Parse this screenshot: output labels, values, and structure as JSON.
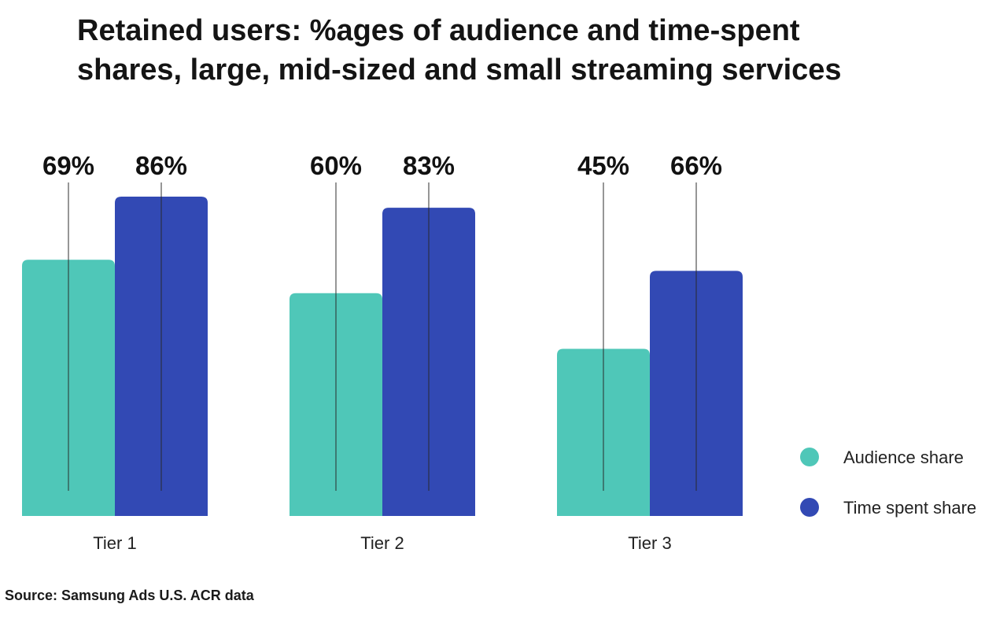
{
  "chart_data": {
    "type": "bar",
    "title": [
      "Retained users: %ages of audience and time-spent",
      "shares, large, mid-sized and small streaming services"
    ],
    "categories": [
      "Tier 1",
      "Tier 2",
      "Tier 3"
    ],
    "series": [
      {
        "name": "Audience share",
        "values": [
          69,
          60,
          45
        ],
        "labels": [
          "69%",
          "60%",
          "45%"
        ],
        "color": "#4fc7b8"
      },
      {
        "name": "Time spent share",
        "values": [
          86,
          83,
          66
        ],
        "labels": [
          "86%",
          "83%",
          "66%"
        ],
        "color": "#3249b4"
      }
    ],
    "ylim": [
      0,
      86
    ],
    "grid": false,
    "legend": "bottom-right",
    "xlabel": "",
    "ylabel": ""
  },
  "source": "Source: Samsung Ads U.S. ACR data"
}
